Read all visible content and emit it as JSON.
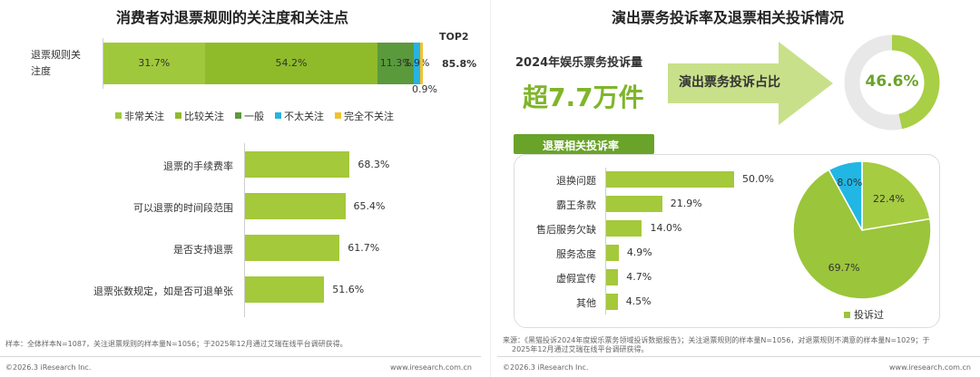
{
  "colors": {
    "c1": "#a0c83c",
    "c2": "#8fbb2a",
    "c3": "#5a9a3c",
    "c4": "#27b3e2",
    "c5": "#f2c22d",
    "bar": "#a4c93a",
    "dark_green": "#6aa32a",
    "pie_green": "#9bc53a",
    "pie_light": "#a6cc42",
    "pie_blue": "#22b6e4",
    "donut_bg": "#e8e8e8"
  },
  "left": {
    "title": "消费者对退票规则的关注度和关注点",
    "top_label": "TOP2",
    "footnote": "样本：全体样本N=1087，关注退票规则的样本量N=1056；于2025年12月通过艾瑞在线平台调研获得。",
    "footer_left": "©2026.3 iResearch Inc.",
    "footer_right": "www.iresearch.com.cn"
  },
  "right": {
    "title": "演出票务投诉率及退票相关投诉情况",
    "stat_label": "2024年娱乐票务投诉量",
    "stat_value": "超7.7万件",
    "arrow_label": "演出票务投诉占比",
    "subheading": "退票相关投诉率",
    "footnote_1": "来源：《黑猫投诉2024年度娱乐票务领域投诉数据报告》；关注退票规则的样本量N=1056，对退票规则不满意的样本量N=1029；于",
    "footnote_2": "2025年12月通过艾瑞在线平台调研获得。",
    "footer_left": "©2026.3 iResearch Inc.",
    "footer_right": "www.iresearch.com.cn"
  },
  "chart_data": [
    {
      "type": "bar",
      "orientation": "horizontal",
      "stacked": true,
      "categories": [
        "退票规则关注度"
      ],
      "series": [
        {
          "name": "非常关注",
          "values": [
            31.7
          ],
          "label": "31.7%"
        },
        {
          "name": "比较关注",
          "values": [
            54.2
          ],
          "label": "54.2%"
        },
        {
          "name": "一般",
          "values": [
            11.3
          ],
          "label": "11.3%"
        },
        {
          "name": "不太关注",
          "values": [
            1.9
          ],
          "label": "1.9%"
        },
        {
          "name": "完全不关注",
          "values": [
            0.9
          ],
          "label": "0.9%"
        }
      ],
      "annotation": "85.8%",
      "annotation_label": "TOP2",
      "category_label_lines": [
        "退票规则关",
        "注度"
      ],
      "legend": "bottom"
    },
    {
      "type": "bar",
      "orientation": "horizontal",
      "categories": [
        "退票的手续费率",
        "可以退票的时间段范围",
        "是否支持退票",
        "退票张数规定，如是否可退单张"
      ],
      "values": [
        68.3,
        65.4,
        61.7,
        51.6
      ],
      "labels": [
        "68.3%",
        "65.4%",
        "61.7%",
        "51.6%"
      ],
      "xlim": [
        0,
        100
      ]
    },
    {
      "type": "pie",
      "variant": "donut",
      "values": [
        46.6
      ],
      "labels": [
        "46.6%"
      ],
      "xlim": [
        0,
        100
      ]
    },
    {
      "type": "bar",
      "orientation": "horizontal",
      "categories": [
        "退换问题",
        "霸王条款",
        "售后服务欠缺",
        "服务态度",
        "虚假宣传",
        "其他"
      ],
      "values": [
        50.0,
        21.9,
        14.0,
        4.9,
        4.7,
        4.5
      ],
      "labels": [
        "50.0%",
        "21.9%",
        "14.0%",
        "4.9%",
        "4.7%",
        "4.5%"
      ],
      "xlim": [
        0,
        100
      ]
    },
    {
      "type": "pie",
      "values": [
        22.4,
        69.7,
        8.0
      ],
      "labels": [
        "22.4%",
        "69.7%",
        "8.0%"
      ],
      "legend": "bottom",
      "legend_entries": [
        "投诉过"
      ]
    }
  ]
}
